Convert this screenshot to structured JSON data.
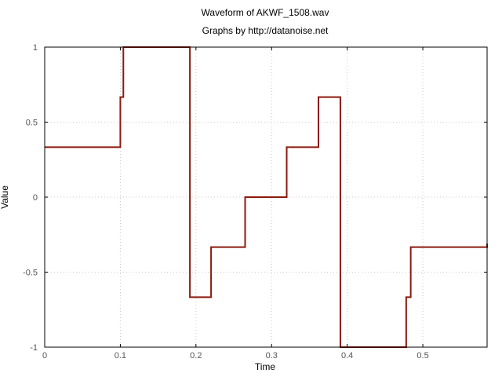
{
  "chart_data": {
    "type": "line",
    "title": "Waveform of AKWF_1508.wav",
    "subtitle": "Graphs by http://datanoise.net",
    "xlabel": "Time",
    "ylabel": "Value",
    "xlim": [
      0,
      0.585
    ],
    "ylim": [
      -1,
      1
    ],
    "x_ticks": [
      0,
      0.1,
      0.2,
      0.3,
      0.4,
      0.5
    ],
    "x_tick_labels": [
      "0",
      "0.1",
      "0.2",
      "0.3",
      "0.4",
      "0.5"
    ],
    "y_ticks": [
      1,
      0.5,
      0,
      -0.5,
      -1
    ],
    "y_tick_labels": [
      "1",
      "0.5",
      "0",
      "-0.5",
      "-1"
    ],
    "grid": true,
    "series": [
      {
        "color": "#8b1a0e",
        "step": true,
        "x": [
          0,
          0.1,
          0.1,
          0.104,
          0.104,
          0.192,
          0.192,
          0.22,
          0.22,
          0.265,
          0.265,
          0.32,
          0.32,
          0.362,
          0.362,
          0.391,
          0.391,
          0.478,
          0.478,
          0.484,
          0.484,
          0.585,
          0.585
        ],
        "y": [
          0.333,
          0.333,
          0.667,
          0.667,
          1.0,
          1.0,
          -0.667,
          -0.667,
          -0.333,
          -0.333,
          0.0,
          0.0,
          0.333,
          0.333,
          0.667,
          0.667,
          -1.0,
          -1.0,
          -0.667,
          -0.667,
          -0.333,
          -0.333,
          -0.31
        ]
      }
    ]
  }
}
